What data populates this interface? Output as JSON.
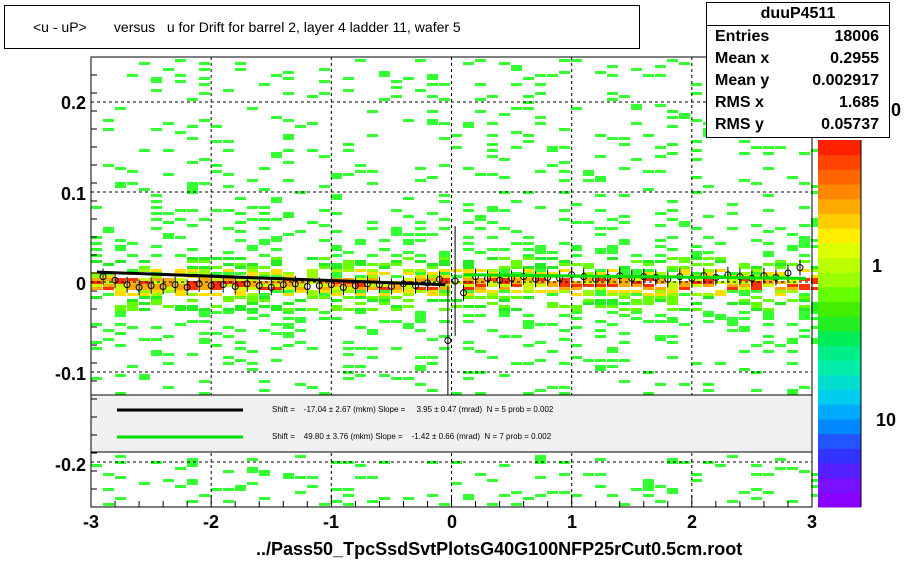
{
  "title": "<u - uP>       versus   u for Drift for barrel 2, layer 4 ladder 11, wafer 5",
  "footer": "../Pass50_TpcSsdSvtPlotsG40G100NFP25rCut0.5cm.root",
  "stats": {
    "name": "duuP4511",
    "rows": [
      {
        "label": "Entries",
        "value": "18006"
      },
      {
        "label": "Mean x",
        "value": "0.2955"
      },
      {
        "label": "Mean y",
        "value": "0.002917"
      },
      {
        "label": "RMS x",
        "value": "1.685"
      },
      {
        "label": "RMS y",
        "value": "0.05737"
      }
    ]
  },
  "legend": {
    "black": {
      "text": "Shift =    -17.04 ± 2.67 (mkm) Slope =     3.95 ± 0.47 (mrad)  N = 5 prob = 0.002",
      "color": "#000000"
    },
    "green": {
      "text": "Shift =    49.80 ± 3.76 (mkm) Slope =    -1.42 ± 0.66 (mrad)  N = 7 prob = 0.002",
      "color": "#00dd00"
    }
  },
  "zticks": {
    "one": "1",
    "ten": "10",
    "top": "0"
  },
  "chart_data": {
    "type": "heatmap",
    "xlim": [
      -3,
      3
    ],
    "ylim": [
      -0.25,
      0.25
    ],
    "xticks": [
      -3,
      -2,
      -1,
      0,
      1,
      2,
      3
    ],
    "yticks": [
      -0.2,
      -0.1,
      0,
      0.1,
      0.2
    ],
    "xtick_labels": [
      "-3",
      "-2",
      "-1",
      "0",
      "1",
      "2",
      "3"
    ],
    "ytick_labels": [
      "-0.2",
      "-0.1",
      "0",
      "0.1",
      "0.2"
    ],
    "grid": true,
    "colorscale": "log",
    "profile_points": {
      "x": [
        -2.9,
        -2.8,
        -2.7,
        -2.6,
        -2.5,
        -2.4,
        -2.3,
        -2.2,
        -2.1,
        -2.0,
        -1.9,
        -1.8,
        -1.7,
        -1.6,
        -1.5,
        -1.4,
        -1.3,
        -1.2,
        -1.1,
        -1.0,
        -0.9,
        -0.8,
        -0.7,
        -0.6,
        -0.5,
        -0.4,
        -0.3,
        -0.2,
        -0.1,
        -0.03,
        0.03,
        0.1,
        0.2,
        0.3,
        0.4,
        0.5,
        0.6,
        0.7,
        0.8,
        0.9,
        1.0,
        1.1,
        1.2,
        1.3,
        1.4,
        1.5,
        1.6,
        1.7,
        1.8,
        1.9,
        2.0,
        2.1,
        2.2,
        2.3,
        2.4,
        2.5,
        2.6,
        2.7,
        2.8,
        2.9
      ],
      "y": [
        0.006,
        0.002,
        -0.003,
        -0.006,
        -0.004,
        -0.005,
        -0.003,
        -0.006,
        -0.002,
        -0.004,
        -0.003,
        -0.005,
        -0.002,
        -0.004,
        -0.006,
        -0.003,
        -0.002,
        -0.005,
        -0.004,
        -0.003,
        -0.006,
        -0.004,
        -0.002,
        -0.003,
        -0.005,
        -0.002,
        -0.004,
        -0.001,
        0.003,
        -0.065,
        0.001,
        -0.012,
        0.006,
        0.004,
        0.002,
        0.004,
        0.006,
        0.003,
        0.005,
        0.004,
        0.008,
        0.006,
        0.003,
        0.005,
        0.007,
        0.004,
        0.006,
        0.005,
        0.003,
        0.006,
        0.004,
        0.007,
        0.005,
        0.008,
        0.006,
        0.004,
        0.007,
        0.005,
        0.01,
        0.016
      ]
    },
    "fits": [
      {
        "color": "black",
        "x": [
          -2.95,
          -0.05
        ],
        "y": [
          0.011,
          -0.003
        ]
      },
      {
        "color": "green",
        "x": [
          0.1,
          2.95
        ],
        "y": [
          0.008,
          0.004
        ]
      }
    ]
  }
}
